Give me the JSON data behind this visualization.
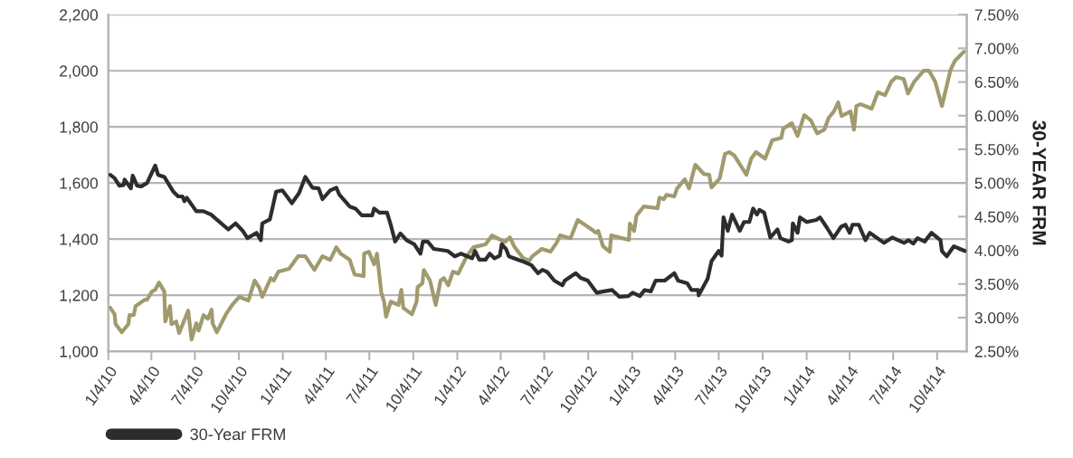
{
  "chart_data": {
    "type": "line",
    "y2label": "30-YEAR FRM",
    "xlim": [
      "2010-01-04",
      "2014-12-05"
    ],
    "xticks": [
      {
        "value": "2010-01-04",
        "label": "1/4/10"
      },
      {
        "value": "2010-04-04",
        "label": "4/4/10"
      },
      {
        "value": "2010-07-04",
        "label": "7/4/10"
      },
      {
        "value": "2010-10-04",
        "label": "10/4/10"
      },
      {
        "value": "2011-01-04",
        "label": "1/4/11"
      },
      {
        "value": "2011-04-04",
        "label": "4/4/11"
      },
      {
        "value": "2011-07-04",
        "label": "7/4/11"
      },
      {
        "value": "2011-10-04",
        "label": "10/4/11"
      },
      {
        "value": "2012-01-04",
        "label": "1/4/12"
      },
      {
        "value": "2012-04-04",
        "label": "4/4/12"
      },
      {
        "value": "2012-07-04",
        "label": "7/4/12"
      },
      {
        "value": "2012-10-04",
        "label": "10/4/12"
      },
      {
        "value": "2013-01-04",
        "label": "1/4/13"
      },
      {
        "value": "2013-04-04",
        "label": "4/4/13"
      },
      {
        "value": "2013-07-04",
        "label": "7/4/13"
      },
      {
        "value": "2013-10-04",
        "label": "10/4/13"
      },
      {
        "value": "2014-01-04",
        "label": "1/4/14"
      },
      {
        "value": "2014-04-04",
        "label": "4/4/14"
      },
      {
        "value": "2014-07-04",
        "label": "7/4/14"
      },
      {
        "value": "2014-10-04",
        "label": "10/4/14"
      }
    ],
    "ylim": [
      1000,
      2200
    ],
    "yticks": [
      {
        "value": 1000,
        "label": "1,000"
      },
      {
        "value": 1200,
        "label": "1,200"
      },
      {
        "value": 1400,
        "label": "1,400"
      },
      {
        "value": 1600,
        "label": "1,600"
      },
      {
        "value": 1800,
        "label": "1,800"
      },
      {
        "value": 2000,
        "label": "2,000"
      },
      {
        "value": 2200,
        "label": "2,200"
      }
    ],
    "y2lim": [
      2.5,
      7.5
    ],
    "y2ticks": [
      {
        "value": 2.5,
        "label": "2.50%"
      },
      {
        "value": 3.0,
        "label": "3.00%"
      },
      {
        "value": 3.5,
        "label": "3.50%"
      },
      {
        "value": 4.0,
        "label": "4.00%"
      },
      {
        "value": 4.5,
        "label": "4.50%"
      },
      {
        "value": 5.0,
        "label": "5.00%"
      },
      {
        "value": 5.5,
        "label": "5.50%"
      },
      {
        "value": 6.0,
        "label": "6.00%"
      },
      {
        "value": 6.5,
        "label": "6.50%"
      },
      {
        "value": 7.0,
        "label": "7.00%"
      },
      {
        "value": 7.5,
        "label": "7.50%"
      }
    ],
    "grid": "y",
    "legend": "bottom left",
    "marker": "none",
    "line_style": "solid",
    "series": [
      {
        "color": "#a09a6e",
        "axis": "y",
        "x": [
          "2010-01-08",
          "2010-01-17",
          "2010-01-19",
          "2010-02-01",
          "2010-02-15",
          "2010-02-17",
          "2010-02-26",
          "2010-03-02",
          "2010-03-21",
          "2010-03-26",
          "2010-04-05",
          "2010-04-12",
          "2010-04-20",
          "2010-05-01",
          "2010-05-03",
          "2010-05-13",
          "2010-05-16",
          "2010-05-26",
          "2010-06-01",
          "2010-06-20",
          "2010-06-27",
          "2010-07-07",
          "2010-07-12",
          "2010-07-22",
          "2010-07-31",
          "2010-08-08",
          "2010-08-10",
          "2010-08-19",
          "2010-09-07",
          "2010-09-20",
          "2010-10-05",
          "2010-10-24",
          "2010-11-06",
          "2010-11-16",
          "2010-11-22",
          "2010-12-10",
          "2010-12-16",
          "2010-12-26",
          "2011-01-17",
          "2011-02-05",
          "2011-02-20",
          "2011-03-11",
          "2011-03-28",
          "2011-04-13",
          "2011-04-26",
          "2011-05-05",
          "2011-05-24",
          "2011-06-03",
          "2011-06-22",
          "2011-06-23",
          "2011-07-03",
          "2011-07-14",
          "2011-07-20",
          "2011-07-29",
          "2011-08-04",
          "2011-08-08",
          "2011-08-18",
          "2011-09-03",
          "2011-09-09",
          "2011-09-13",
          "2011-10-01",
          "2011-10-11",
          "2011-10-13",
          "2011-10-23",
          "2011-10-26",
          "2011-11-08",
          "2011-11-20",
          "2011-11-30",
          "2011-12-07",
          "2011-12-16",
          "2011-12-26",
          "2012-01-06",
          "2012-01-24",
          "2012-02-07",
          "2012-03-03",
          "2012-03-17",
          "2012-04-04",
          "2012-04-13",
          "2012-04-23",
          "2012-05-03",
          "2012-05-21",
          "2012-06-03",
          "2012-06-09",
          "2012-06-29",
          "2012-07-17",
          "2012-07-30",
          "2012-08-06",
          "2012-08-28",
          "2012-09-12",
          "2012-10-07",
          "2012-10-20",
          "2012-10-25",
          "2012-11-04",
          "2012-11-18",
          "2012-11-21",
          "2012-12-28",
          "2012-12-30",
          "2013-01-08",
          "2013-01-13",
          "2013-01-28",
          "2013-02-26",
          "2013-03-02",
          "2013-03-11",
          "2013-03-17",
          "2013-04-02",
          "2013-04-08",
          "2013-04-24",
          "2013-05-03",
          "2013-05-16",
          "2013-06-03",
          "2013-06-14",
          "2013-06-19",
          "2013-07-06",
          "2013-07-17",
          "2013-07-26",
          "2013-08-06",
          "2013-08-31",
          "2013-09-10",
          "2013-09-20",
          "2013-10-09",
          "2013-10-24",
          "2013-11-12",
          "2013-11-16",
          "2013-12-04",
          "2013-12-16",
          "2013-12-30",
          "2014-01-13",
          "2014-01-26",
          "2014-02-10",
          "2014-02-19",
          "2014-03-02",
          "2014-03-11",
          "2014-03-18",
          "2014-04-06",
          "2014-04-13",
          "2014-04-18",
          "2014-04-27",
          "2014-05-20",
          "2014-06-02",
          "2014-06-17",
          "2014-06-30",
          "2014-07-10",
          "2014-07-26",
          "2014-08-04",
          "2014-08-17",
          "2014-09-06",
          "2014-09-17",
          "2014-09-30",
          "2014-10-14",
          "2014-11-01",
          "2014-11-10",
          "2014-11-29"
        ],
        "values": [
          1155,
          1132,
          1097,
          1068,
          1097,
          1129,
          1129,
          1161,
          1184,
          1184,
          1213,
          1219,
          1245,
          1213,
          1106,
          1161,
          1097,
          1106,
          1065,
          1145,
          1042,
          1100,
          1074,
          1129,
          1116,
          1148,
          1100,
          1068,
          1132,
          1165,
          1194,
          1181,
          1252,
          1226,
          1194,
          1261,
          1252,
          1284,
          1294,
          1339,
          1339,
          1290,
          1339,
          1326,
          1371,
          1348,
          1326,
          1274,
          1268,
          1348,
          1355,
          1310,
          1348,
          1210,
          1177,
          1123,
          1177,
          1165,
          1219,
          1155,
          1132,
          1177,
          1229,
          1242,
          1290,
          1252,
          1165,
          1252,
          1261,
          1235,
          1284,
          1277,
          1339,
          1371,
          1381,
          1413,
          1397,
          1390,
          1406,
          1371,
          1332,
          1323,
          1339,
          1365,
          1355,
          1387,
          1413,
          1403,
          1468,
          1439,
          1423,
          1429,
          1374,
          1355,
          1413,
          1397,
          1455,
          1429,
          1484,
          1516,
          1510,
          1548,
          1542,
          1558,
          1552,
          1581,
          1613,
          1581,
          1665,
          1632,
          1629,
          1584,
          1616,
          1703,
          1710,
          1697,
          1629,
          1687,
          1710,
          1687,
          1752,
          1761,
          1794,
          1813,
          1768,
          1842,
          1823,
          1777,
          1790,
          1832,
          1855,
          1887,
          1839,
          1855,
          1790,
          1874,
          1881,
          1865,
          1923,
          1913,
          1961,
          1977,
          1971,
          1919,
          1961,
          2000,
          2000,
          1961,
          1874,
          2003,
          2035,
          2068
        ]
      },
      {
        "name": "30-Year FRM",
        "color": "#2d2d2d",
        "axis": "y2",
        "x": [
          "2010-01-08",
          "2010-01-17",
          "2010-01-27",
          "2010-02-05",
          "2010-02-07",
          "2010-02-20",
          "2010-02-24",
          "2010-03-05",
          "2010-03-14",
          "2010-03-26",
          "2010-04-12",
          "2010-04-18",
          "2010-05-01",
          "2010-05-20",
          "2010-05-30",
          "2010-06-08",
          "2010-06-12",
          "2010-06-17",
          "2010-07-07",
          "2010-07-22",
          "2010-08-07",
          "2010-08-20",
          "2010-09-12",
          "2010-09-27",
          "2010-10-12",
          "2010-10-22",
          "2010-11-10",
          "2010-11-19",
          "2010-11-22",
          "2010-12-08",
          "2010-12-21",
          "2011-01-03",
          "2011-01-23",
          "2011-02-07",
          "2011-02-20",
          "2011-03-07",
          "2011-03-20",
          "2011-03-28",
          "2011-04-13",
          "2011-04-26",
          "2011-05-02",
          "2011-05-24",
          "2011-06-05",
          "2011-06-18",
          "2011-07-10",
          "2011-07-14",
          "2011-07-25",
          "2011-08-10",
          "2011-08-17",
          "2011-08-27",
          "2011-09-07",
          "2011-09-20",
          "2011-10-06",
          "2011-10-19",
          "2011-10-24",
          "2011-11-03",
          "2011-11-16",
          "2011-12-15",
          "2011-12-30",
          "2012-01-12",
          "2012-02-04",
          "2012-02-10",
          "2012-02-19",
          "2012-03-03",
          "2012-03-12",
          "2012-03-22",
          "2012-04-02",
          "2012-04-06",
          "2012-04-15",
          "2012-04-21",
          "2012-05-18",
          "2012-06-07",
          "2012-06-21",
          "2012-06-30",
          "2012-07-10",
          "2012-07-25",
          "2012-08-11",
          "2012-08-16",
          "2012-09-08",
          "2012-09-18",
          "2012-10-03",
          "2012-10-22",
          "2012-11-06",
          "2012-11-23",
          "2012-12-08",
          "2012-12-27",
          "2013-01-05",
          "2013-01-20",
          "2013-01-30",
          "2013-02-12",
          "2013-02-22",
          "2013-03-13",
          "2013-04-02",
          "2013-04-10",
          "2013-04-29",
          "2013-05-08",
          "2013-05-22",
          "2013-05-23",
          "2013-06-11",
          "2013-06-19",
          "2013-07-04",
          "2013-07-10",
          "2013-07-14",
          "2013-07-23",
          "2013-08-01",
          "2013-08-17",
          "2013-08-26",
          "2013-09-06",
          "2013-09-14",
          "2013-09-22",
          "2013-09-27",
          "2013-10-07",
          "2013-10-20",
          "2013-11-04",
          "2013-11-10",
          "2013-11-27",
          "2013-12-04",
          "2013-12-06",
          "2013-12-16",
          "2013-12-21",
          "2014-01-04",
          "2014-01-24",
          "2014-02-01",
          "2014-02-16",
          "2014-03-01",
          "2014-03-17",
          "2014-03-26",
          "2014-04-04",
          "2014-04-10",
          "2014-04-23",
          "2014-05-07",
          "2014-05-16",
          "2014-06-15",
          "2014-07-02",
          "2014-07-27",
          "2014-08-05",
          "2014-08-15",
          "2014-08-24",
          "2014-09-08",
          "2014-09-22",
          "2014-10-11",
          "2014-10-14",
          "2014-10-24",
          "2014-11-08",
          "2014-12-01"
        ],
        "values": [
          5.12,
          5.07,
          4.96,
          4.97,
          5.05,
          4.92,
          5.11,
          4.96,
          4.95,
          5.0,
          5.26,
          5.12,
          5.09,
          4.87,
          4.8,
          4.8,
          4.73,
          4.78,
          4.58,
          4.58,
          4.53,
          4.45,
          4.31,
          4.4,
          4.29,
          4.18,
          4.26,
          4.15,
          4.4,
          4.46,
          4.87,
          4.89,
          4.7,
          4.85,
          5.09,
          4.93,
          4.92,
          4.76,
          4.89,
          4.93,
          4.83,
          4.65,
          4.62,
          4.52,
          4.52,
          4.62,
          4.56,
          4.56,
          4.4,
          4.13,
          4.25,
          4.15,
          4.09,
          3.95,
          4.13,
          4.13,
          4.02,
          3.99,
          3.91,
          3.95,
          3.88,
          3.99,
          3.86,
          3.86,
          3.95,
          3.88,
          3.92,
          4.09,
          4.02,
          3.91,
          3.84,
          3.78,
          3.66,
          3.71,
          3.68,
          3.55,
          3.48,
          3.55,
          3.66,
          3.59,
          3.55,
          3.37,
          3.39,
          3.41,
          3.31,
          3.32,
          3.37,
          3.32,
          3.41,
          3.39,
          3.55,
          3.55,
          3.66,
          3.55,
          3.51,
          3.41,
          3.41,
          3.33,
          3.58,
          3.84,
          3.99,
          3.92,
          4.49,
          4.29,
          4.53,
          4.29,
          4.42,
          4.42,
          4.62,
          4.53,
          4.6,
          4.56,
          4.19,
          4.31,
          4.18,
          4.13,
          4.15,
          4.4,
          4.26,
          4.49,
          4.42,
          4.45,
          4.49,
          4.33,
          4.18,
          4.35,
          4.38,
          4.26,
          4.38,
          4.38,
          4.15,
          4.26,
          4.11,
          4.19,
          4.11,
          4.15,
          4.1,
          4.18,
          4.13,
          4.26,
          4.15,
          3.99,
          3.91,
          4.06,
          3.99
        ]
      }
    ]
  }
}
